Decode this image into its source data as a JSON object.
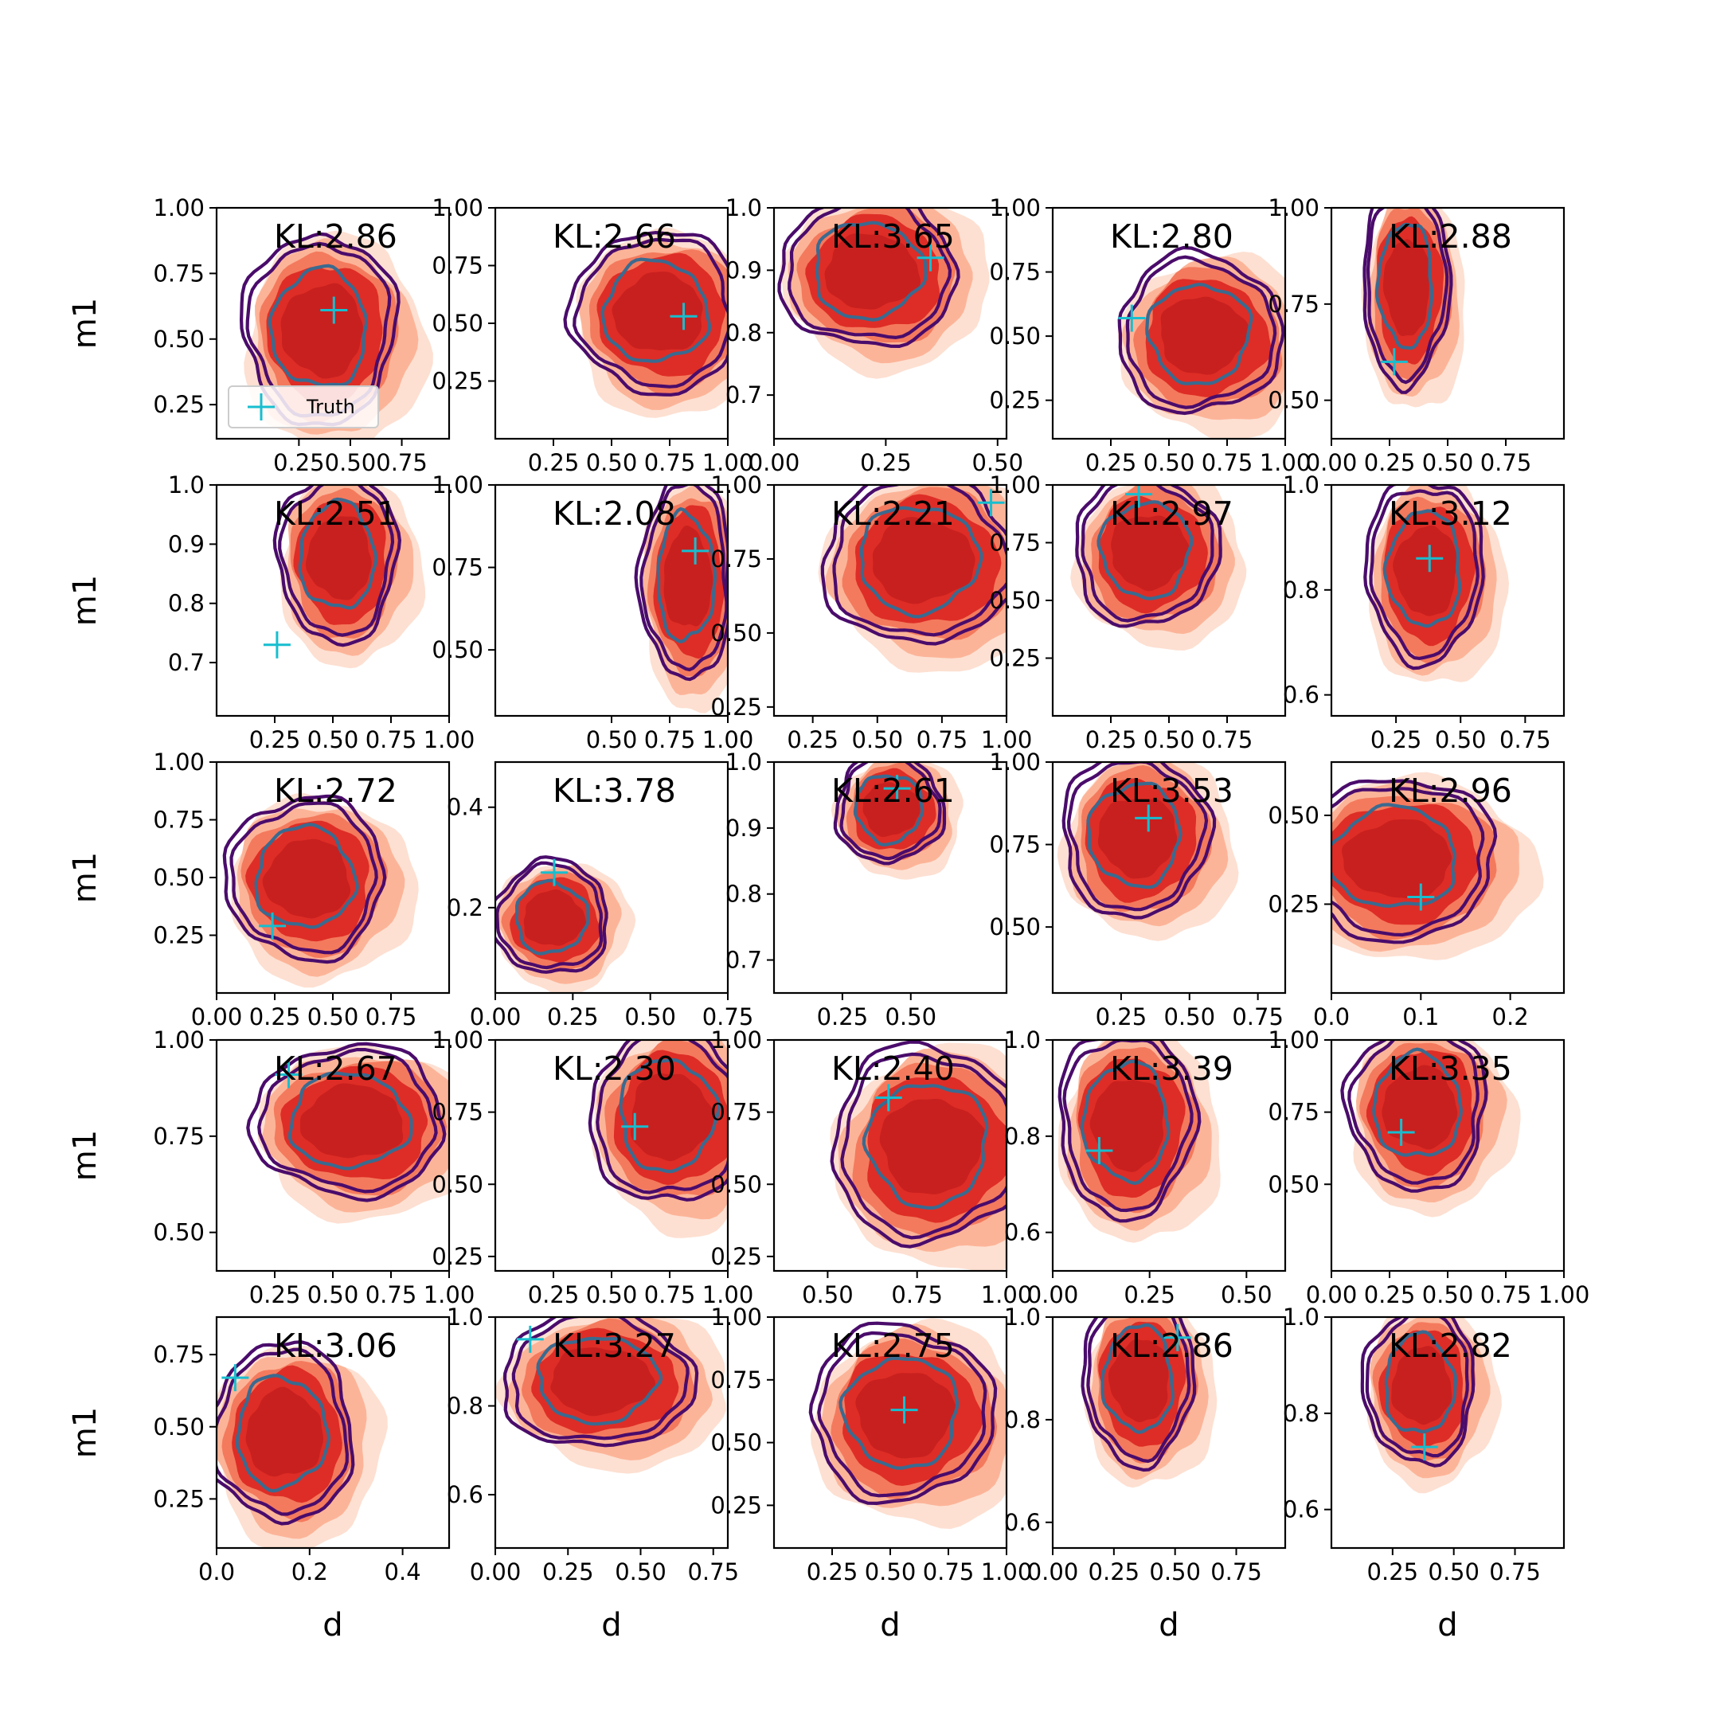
{
  "chart_data": {
    "type": "contour",
    "layout": {
      "rows": 5,
      "cols": 5
    },
    "xlabel": "d",
    "ylabel": "m1",
    "legend": {
      "label": "Truth",
      "placement": "lower-left of first panel"
    },
    "colors": {
      "posterior_fill": [
        "#fde0d2",
        "#fcb498",
        "#f47a5d",
        "#de2d26",
        "#c8201f"
      ],
      "contour_outer": "#4a0c6b",
      "contour_inner": "#3b6a8f",
      "truth": "#17becf"
    },
    "panels": [
      {
        "kl": "KL:2.86",
        "xlim": [
          -0.15,
          0.98
        ],
        "ylim": [
          0.12,
          1.0
        ],
        "xticks": [
          0.25,
          0.5,
          0.75
        ],
        "xtick_labels": [
          "0.25",
          "0.50",
          "0.75"
        ],
        "yticks": [
          0.25,
          0.5,
          0.75,
          1.0
        ],
        "ytick_labels": [
          "0.25",
          "0.50",
          "0.75",
          "1.00"
        ],
        "center": [
          0.35,
          0.54
        ],
        "spread": [
          0.36,
          0.35
        ],
        "truth": [
          0.42,
          0.61
        ],
        "legend": true
      },
      {
        "kl": "KL:2.66",
        "xlim": [
          0.0,
          1.0
        ],
        "ylim": [
          0.0,
          1.0
        ],
        "xticks": [
          0.25,
          0.5,
          0.75,
          1.0
        ],
        "xtick_labels": [
          "0.25",
          "0.50",
          "0.75",
          "1.00"
        ],
        "yticks": [
          0.25,
          0.5,
          0.75,
          1.0
        ],
        "ytick_labels": [
          "0.25",
          "0.50",
          "0.75",
          "1.00"
        ],
        "center": [
          0.69,
          0.55
        ],
        "spread": [
          0.35,
          0.34
        ],
        "truth": [
          0.81,
          0.53
        ]
      },
      {
        "kl": "KL:3.65",
        "xlim": [
          0.0,
          0.52
        ],
        "ylim": [
          0.63,
          1.0
        ],
        "xticks": [
          0.0,
          0.25,
          0.5
        ],
        "xtick_labels": [
          "0.00",
          "0.25",
          "0.50"
        ],
        "yticks": [
          0.7,
          0.8,
          0.9,
          1.0
        ],
        "ytick_labels": [
          "0.7",
          "0.8",
          "0.9",
          "1.0"
        ],
        "center": [
          0.21,
          0.9
        ],
        "spread": [
          0.19,
          0.12
        ],
        "truth": [
          0.35,
          0.92
        ]
      },
      {
        "kl": "KL:2.80",
        "xlim": [
          0.0,
          1.0
        ],
        "ylim": [
          0.1,
          1.0
        ],
        "xticks": [
          0.25,
          0.5,
          0.75,
          1.0
        ],
        "xtick_labels": [
          "0.25",
          "0.50",
          "0.75",
          "1.00"
        ],
        "yticks": [
          0.25,
          0.5,
          0.75,
          1.0
        ],
        "ytick_labels": [
          "0.25",
          "0.50",
          "0.75",
          "1.00"
        ],
        "center": [
          0.63,
          0.51
        ],
        "spread": [
          0.34,
          0.3
        ],
        "truth": [
          0.34,
          0.57
        ]
      },
      {
        "kl": "KL:2.88",
        "xlim": [
          0.0,
          1.0
        ],
        "ylim": [
          0.4,
          1.0
        ],
        "xticks": [
          0.0,
          0.25,
          0.5,
          0.75
        ],
        "xtick_labels": [
          "0.00",
          "0.25",
          "0.50",
          "0.75"
        ],
        "yticks": [
          0.5,
          0.75,
          1.0
        ],
        "ytick_labels": [
          "0.50",
          "0.75",
          "1.00"
        ],
        "center": [
          0.32,
          0.8
        ],
        "spread": [
          0.18,
          0.25
        ],
        "truth": [
          0.27,
          0.6
        ]
      },
      {
        "kl": "KL:2.51",
        "xlim": [
          0.0,
          1.0
        ],
        "ylim": [
          0.61,
          1.0
        ],
        "xticks": [
          0.25,
          0.5,
          0.75,
          1.0
        ],
        "xtick_labels": [
          "0.25",
          "0.50",
          "0.75",
          "1.00"
        ],
        "yticks": [
          0.7,
          0.8,
          0.9,
          1.0
        ],
        "ytick_labels": [
          "0.7",
          "0.8",
          "0.9",
          "1.0"
        ],
        "center": [
          0.52,
          0.88
        ],
        "spread": [
          0.25,
          0.14
        ],
        "truth": [
          0.26,
          0.73
        ]
      },
      {
        "kl": "KL:2.08",
        "xlim": [
          0.0,
          1.0
        ],
        "ylim": [
          0.3,
          1.0
        ],
        "xticks": [
          0.5,
          0.75,
          1.0
        ],
        "xtick_labels": [
          "0.50",
          "0.75",
          "1.00"
        ],
        "yticks": [
          0.5,
          0.75,
          1.0
        ],
        "ytick_labels": [
          "0.50",
          "0.75",
          "1.00"
        ],
        "center": [
          0.82,
          0.72
        ],
        "spread": [
          0.19,
          0.3
        ],
        "truth": [
          0.86,
          0.8
        ]
      },
      {
        "kl": "KL:2.21",
        "xlim": [
          0.1,
          1.0
        ],
        "ylim": [
          0.22,
          1.0
        ],
        "xticks": [
          0.25,
          0.5,
          0.75,
          1.0
        ],
        "xtick_labels": [
          "0.25",
          "0.50",
          "0.75",
          "1.00"
        ],
        "yticks": [
          0.25,
          0.5,
          0.75,
          1.0
        ],
        "ytick_labels": [
          "0.25",
          "0.50",
          "0.75",
          "1.00"
        ],
        "center": [
          0.66,
          0.75
        ],
        "spread": [
          0.36,
          0.28
        ],
        "truth": [
          0.94,
          0.94
        ]
      },
      {
        "kl": "KL:2.97",
        "xlim": [
          0.0,
          1.0
        ],
        "ylim": [
          0.0,
          1.0
        ],
        "xticks": [
          0.25,
          0.5,
          0.75
        ],
        "xtick_labels": [
          "0.25",
          "0.50",
          "0.75"
        ],
        "yticks": [
          0.25,
          0.5,
          0.75,
          1.0
        ],
        "ytick_labels": [
          "0.25",
          "0.50",
          "0.75",
          "1.00"
        ],
        "center": [
          0.4,
          0.72
        ],
        "spread": [
          0.3,
          0.32
        ],
        "truth": [
          0.37,
          0.96
        ]
      },
      {
        "kl": "KL:3.12",
        "xlim": [
          0.0,
          0.9
        ],
        "ylim": [
          0.56,
          1.0
        ],
        "xticks": [
          0.25,
          0.5,
          0.75
        ],
        "xtick_labels": [
          "0.25",
          "0.50",
          "0.75"
        ],
        "yticks": [
          0.6,
          0.8,
          1.0
        ],
        "ytick_labels": [
          "0.6",
          "0.8",
          "1.0"
        ],
        "center": [
          0.36,
          0.84
        ],
        "spread": [
          0.22,
          0.17
        ],
        "truth": [
          0.38,
          0.86
        ]
      },
      {
        "kl": "KL:2.72",
        "xlim": [
          0.0,
          1.0
        ],
        "ylim": [
          0.0,
          1.0
        ],
        "xticks": [
          0.0,
          0.25,
          0.5,
          0.75
        ],
        "xtick_labels": [
          "0.00",
          "0.25",
          "0.50",
          "0.75"
        ],
        "yticks": [
          0.25,
          0.5,
          0.75,
          1.0
        ],
        "ytick_labels": [
          "0.25",
          "0.50",
          "0.75",
          "1.00"
        ],
        "center": [
          0.38,
          0.5
        ],
        "spread": [
          0.33,
          0.34
        ],
        "truth": [
          0.24,
          0.29
        ]
      },
      {
        "kl": "KL:3.78",
        "xlim": [
          0.0,
          0.75
        ],
        "ylim": [
          0.03,
          0.49
        ],
        "xticks": [
          0.0,
          0.25,
          0.5,
          0.75
        ],
        "xtick_labels": [
          "0.00",
          "0.25",
          "0.50",
          "0.75"
        ],
        "yticks": [
          0.2,
          0.4
        ],
        "ytick_labels": [
          "0.2",
          "0.4"
        ],
        "center": [
          0.18,
          0.18
        ],
        "spread": [
          0.18,
          0.11
        ],
        "truth": [
          0.19,
          0.27
        ]
      },
      {
        "kl": "KL:2.61",
        "xlim": [
          0.0,
          0.85
        ],
        "ylim": [
          0.65,
          1.0
        ],
        "xticks": [
          0.25,
          0.5
        ],
        "xtick_labels": [
          "0.25",
          "0.50"
        ],
        "yticks": [
          0.7,
          0.8,
          0.9,
          1.0
        ],
        "ytick_labels": [
          "0.7",
          "0.8",
          "0.9",
          "1.0"
        ],
        "center": [
          0.42,
          0.93
        ],
        "spread": [
          0.19,
          0.08
        ],
        "truth": [
          0.45,
          0.96
        ]
      },
      {
        "kl": "KL:3.53",
        "xlim": [
          0.0,
          0.85
        ],
        "ylim": [
          0.3,
          1.0
        ],
        "xticks": [
          0.25,
          0.5,
          0.75
        ],
        "xtick_labels": [
          "0.25",
          "0.50",
          "0.75"
        ],
        "yticks": [
          0.5,
          0.75,
          1.0
        ],
        "ytick_labels": [
          "0.50",
          "0.75",
          "1.00"
        ],
        "center": [
          0.3,
          0.78
        ],
        "spread": [
          0.26,
          0.24
        ],
        "truth": [
          0.35,
          0.83
        ]
      },
      {
        "kl": "KL:2.96",
        "xlim": [
          0.0,
          0.26
        ],
        "ylim": [
          0.0,
          0.65
        ],
        "xticks": [
          0.0,
          0.1,
          0.2
        ],
        "xtick_labels": [
          "0.0",
          "0.1",
          "0.2"
        ],
        "yticks": [
          0.25,
          0.5
        ],
        "ytick_labels": [
          "0.25",
          "0.50"
        ],
        "center": [
          0.07,
          0.38
        ],
        "spread": [
          0.11,
          0.22
        ],
        "truth": [
          0.1,
          0.27
        ]
      },
      {
        "kl": "KL:2.67",
        "xlim": [
          0.0,
          1.0
        ],
        "ylim": [
          0.4,
          1.0
        ],
        "xticks": [
          0.25,
          0.5,
          0.75,
          1.0
        ],
        "xtick_labels": [
          "0.25",
          "0.50",
          "0.75",
          "1.00"
        ],
        "yticks": [
          0.5,
          0.75,
          1.0
        ],
        "ytick_labels": [
          "0.50",
          "0.75",
          "1.00"
        ],
        "center": [
          0.57,
          0.79
        ],
        "spread": [
          0.4,
          0.19
        ],
        "truth": [
          0.31,
          0.91
        ]
      },
      {
        "kl": "KL:2.30",
        "xlim": [
          0.0,
          1.0
        ],
        "ylim": [
          0.2,
          1.0
        ],
        "xticks": [
          0.25,
          0.5,
          0.75,
          1.0
        ],
        "xtick_labels": [
          "0.25",
          "0.50",
          "0.75",
          "1.00"
        ],
        "yticks": [
          0.25,
          0.5,
          0.75,
          1.0
        ],
        "ytick_labels": [
          "0.25",
          "0.50",
          "0.75",
          "1.00"
        ],
        "center": [
          0.74,
          0.74
        ],
        "spread": [
          0.32,
          0.3
        ],
        "truth": [
          0.6,
          0.7
        ]
      },
      {
        "kl": "KL:2.40",
        "xlim": [
          0.35,
          1.0
        ],
        "ylim": [
          0.2,
          1.0
        ],
        "xticks": [
          0.5,
          0.75,
          1.0
        ],
        "xtick_labels": [
          "0.50",
          "0.75",
          "1.00"
        ],
        "yticks": [
          0.25,
          0.5,
          0.75,
          1.0
        ],
        "ytick_labels": [
          "0.25",
          "0.50",
          "0.75",
          "1.00"
        ],
        "center": [
          0.78,
          0.64
        ],
        "spread": [
          0.26,
          0.33
        ],
        "truth": [
          0.67,
          0.8
        ]
      },
      {
        "kl": "KL:3.39",
        "xlim": [
          0.0,
          0.6
        ],
        "ylim": [
          0.52,
          1.0
        ],
        "xticks": [
          0.0,
          0.25,
          0.5
        ],
        "xtick_labels": [
          "0.00",
          "0.25",
          "0.50"
        ],
        "yticks": [
          0.6,
          0.8,
          1.0
        ],
        "ytick_labels": [
          "0.6",
          "0.8",
          "1.0"
        ],
        "center": [
          0.19,
          0.83
        ],
        "spread": [
          0.17,
          0.19
        ],
        "truth": [
          0.12,
          0.77
        ]
      },
      {
        "kl": "KL:3.35",
        "xlim": [
          0.0,
          1.0
        ],
        "ylim": [
          0.2,
          1.0
        ],
        "xticks": [
          0.0,
          0.25,
          0.5,
          0.75,
          1.0
        ],
        "xtick_labels": [
          "0.00",
          "0.25",
          "0.50",
          "0.75",
          "1.00"
        ],
        "yticks": [
          0.5,
          0.75,
          1.0
        ],
        "ytick_labels": [
          "0.50",
          "0.75",
          "1.00"
        ],
        "center": [
          0.37,
          0.77
        ],
        "spread": [
          0.29,
          0.28
        ],
        "truth": [
          0.3,
          0.68
        ]
      },
      {
        "kl": "KL:3.06",
        "xlim": [
          0.0,
          0.5
        ],
        "ylim": [
          0.08,
          0.88
        ],
        "xticks": [
          0.0,
          0.2,
          0.4
        ],
        "xtick_labels": [
          "0.0",
          "0.2",
          "0.4"
        ],
        "yticks": [
          0.25,
          0.5,
          0.75
        ],
        "ytick_labels": [
          "0.25",
          "0.50",
          "0.75"
        ],
        "center": [
          0.14,
          0.48
        ],
        "spread": [
          0.15,
          0.3
        ],
        "truth": [
          0.04,
          0.67
        ]
      },
      {
        "kl": "KL:3.27",
        "xlim": [
          0.0,
          0.8
        ],
        "ylim": [
          0.48,
          1.0
        ],
        "xticks": [
          0.0,
          0.25,
          0.5,
          0.75
        ],
        "xtick_labels": [
          "0.00",
          "0.25",
          "0.50",
          "0.75"
        ],
        "yticks": [
          0.6,
          0.8,
          1.0
        ],
        "ytick_labels": [
          "0.6",
          "0.8",
          "1.0"
        ],
        "center": [
          0.35,
          0.86
        ],
        "spread": [
          0.32,
          0.15
        ],
        "truth": [
          0.12,
          0.95
        ]
      },
      {
        "kl": "KL:2.75",
        "xlim": [
          0.0,
          1.0
        ],
        "ylim": [
          0.08,
          1.0
        ],
        "xticks": [
          0.25,
          0.5,
          0.75,
          1.0
        ],
        "xtick_labels": [
          "0.25",
          "0.50",
          "0.75",
          "1.00"
        ],
        "yticks": [
          0.25,
          0.5,
          0.75,
          1.0
        ],
        "ytick_labels": [
          "0.25",
          "0.50",
          "0.75",
          "1.00"
        ],
        "center": [
          0.55,
          0.62
        ],
        "spread": [
          0.38,
          0.34
        ],
        "truth": [
          0.56,
          0.63
        ]
      },
      {
        "kl": "KL:2.86",
        "xlim": [
          0.0,
          0.95
        ],
        "ylim": [
          0.55,
          1.0
        ],
        "xticks": [
          0.0,
          0.25,
          0.5,
          0.75
        ],
        "xtick_labels": [
          "0.00",
          "0.25",
          "0.50",
          "0.75"
        ],
        "yticks": [
          0.6,
          0.8,
          1.0
        ],
        "ytick_labels": [
          "0.6",
          "0.8",
          "1.0"
        ],
        "center": [
          0.35,
          0.88
        ],
        "spread": [
          0.22,
          0.16
        ],
        "truth": [
          0.51,
          0.96
        ]
      },
      {
        "kl": "KL:2.82",
        "xlim": [
          0.0,
          0.95
        ],
        "ylim": [
          0.52,
          1.0
        ],
        "xticks": [
          0.25,
          0.5,
          0.75
        ],
        "xtick_labels": [
          "0.25",
          "0.50",
          "0.75"
        ],
        "yticks": [
          0.6,
          0.8,
          1.0
        ],
        "ytick_labels": [
          "0.6",
          "0.8",
          "1.0"
        ],
        "center": [
          0.36,
          0.86
        ],
        "spread": [
          0.22,
          0.16
        ],
        "truth": [
          0.38,
          0.73
        ]
      }
    ]
  }
}
